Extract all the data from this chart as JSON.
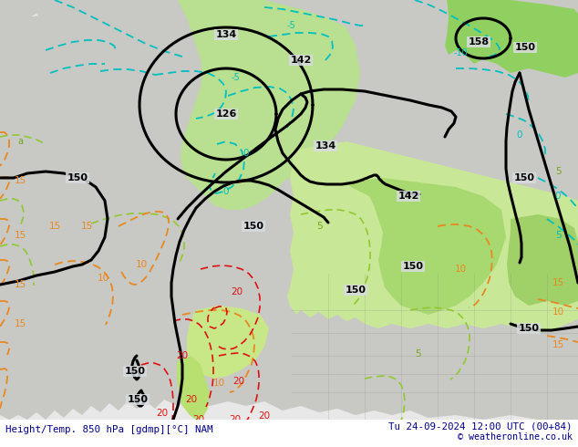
{
  "title_left": "Height/Temp. 850 hPa [gdmp][°C] NAM",
  "title_right": "Tu 24-09-2024 12:00 UTC (00+84)",
  "copyright": "© weatheronline.co.uk",
  "bg_color": "#e8e8e8",
  "ocean_color": "#d8dce0",
  "land_color": "#c8c8c4",
  "bottom_text_color": "#00008b",
  "fig_width": 6.34,
  "fig_height": 4.9,
  "dpi": 100
}
